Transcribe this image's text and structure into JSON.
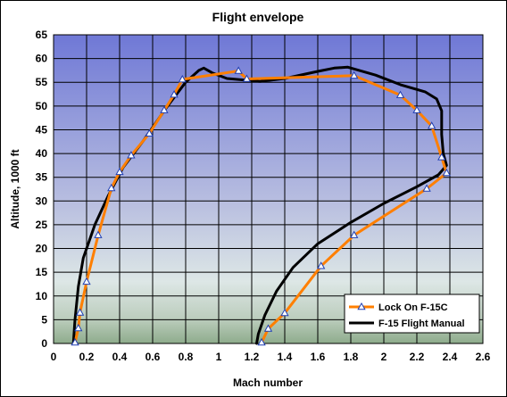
{
  "chart_data": {
    "type": "line",
    "title": "Flight envelope",
    "xlabel": "Mach number",
    "ylabel": "Altitude, 1000 ft",
    "xlim": [
      0,
      2.6
    ],
    "ylim": [
      0,
      65
    ],
    "x_ticks": [
      "0",
      "0.2",
      "0.4",
      "0.6",
      "0.8",
      "1",
      "1.2",
      "1.4",
      "1.6",
      "1.8",
      "2",
      "2.2",
      "2.4",
      "2.6"
    ],
    "y_ticks": [
      "0",
      "5",
      "10",
      "15",
      "20",
      "25",
      "30",
      "35",
      "40",
      "45",
      "50",
      "55",
      "60",
      "65"
    ],
    "x_tick_values": [
      0,
      0.2,
      0.4,
      0.6,
      0.8,
      1.0,
      1.2,
      1.4,
      1.6,
      1.8,
      2.0,
      2.2,
      2.4,
      2.6
    ],
    "y_tick_values": [
      0,
      5,
      10,
      15,
      20,
      25,
      30,
      35,
      40,
      45,
      50,
      55,
      60,
      65
    ],
    "grid": true,
    "legend_position": "bottom-right",
    "series": [
      {
        "name": "Lock On F-15C",
        "color": "#FF7F00",
        "marker": "triangle",
        "points": [
          [
            0.13,
            0.2
          ],
          [
            0.15,
            3.2
          ],
          [
            0.16,
            6.5
          ],
          [
            0.2,
            13.0
          ],
          [
            0.27,
            22.8
          ],
          [
            0.35,
            32.7
          ],
          [
            0.4,
            36.1
          ],
          [
            0.47,
            39.6
          ],
          [
            0.58,
            44.2
          ],
          [
            0.67,
            49.1
          ],
          [
            0.73,
            52.4
          ],
          [
            0.78,
            55.6
          ],
          [
            1.12,
            57.4
          ],
          [
            1.17,
            55.7
          ],
          [
            1.82,
            56.4
          ],
          [
            2.1,
            52.3
          ],
          [
            2.2,
            49.1
          ],
          [
            2.29,
            45.8
          ],
          [
            2.35,
            39.2
          ],
          [
            2.38,
            35.9
          ],
          [
            2.26,
            32.6
          ],
          [
            1.82,
            22.8
          ],
          [
            1.62,
            16.3
          ],
          [
            1.4,
            6.4
          ],
          [
            1.3,
            3.1
          ],
          [
            1.26,
            0.2
          ]
        ]
      },
      {
        "name": "F-15 Flight Manual",
        "color": "#000000",
        "marker": "none",
        "points": [
          [
            0.12,
            0.0
          ],
          [
            0.13,
            5.0
          ],
          [
            0.15,
            12.0
          ],
          [
            0.18,
            18.0
          ],
          [
            0.25,
            25.0
          ],
          [
            0.33,
            31.0
          ],
          [
            0.42,
            37.0
          ],
          [
            0.55,
            43.0
          ],
          [
            0.68,
            49.5
          ],
          [
            0.8,
            55.0
          ],
          [
            0.88,
            57.5
          ],
          [
            0.91,
            58.0
          ],
          [
            0.96,
            57.0
          ],
          [
            1.05,
            55.8
          ],
          [
            1.15,
            55.5
          ],
          [
            1.25,
            55.2
          ],
          [
            1.4,
            55.8
          ],
          [
            1.6,
            57.3
          ],
          [
            1.7,
            58.0
          ],
          [
            1.78,
            58.2
          ],
          [
            1.95,
            56.5
          ],
          [
            2.1,
            54.5
          ],
          [
            2.25,
            53.0
          ],
          [
            2.32,
            51.5
          ],
          [
            2.35,
            49.0
          ],
          [
            2.35,
            44.0
          ],
          [
            2.36,
            40.0
          ],
          [
            2.38,
            37.5
          ],
          [
            2.33,
            35.5
          ],
          [
            2.2,
            33.0
          ],
          [
            2.0,
            29.5
          ],
          [
            1.8,
            25.5
          ],
          [
            1.6,
            21.0
          ],
          [
            1.45,
            16.0
          ],
          [
            1.35,
            11.0
          ],
          [
            1.28,
            6.0
          ],
          [
            1.24,
            2.0
          ],
          [
            1.23,
            0.0
          ]
        ]
      }
    ]
  }
}
